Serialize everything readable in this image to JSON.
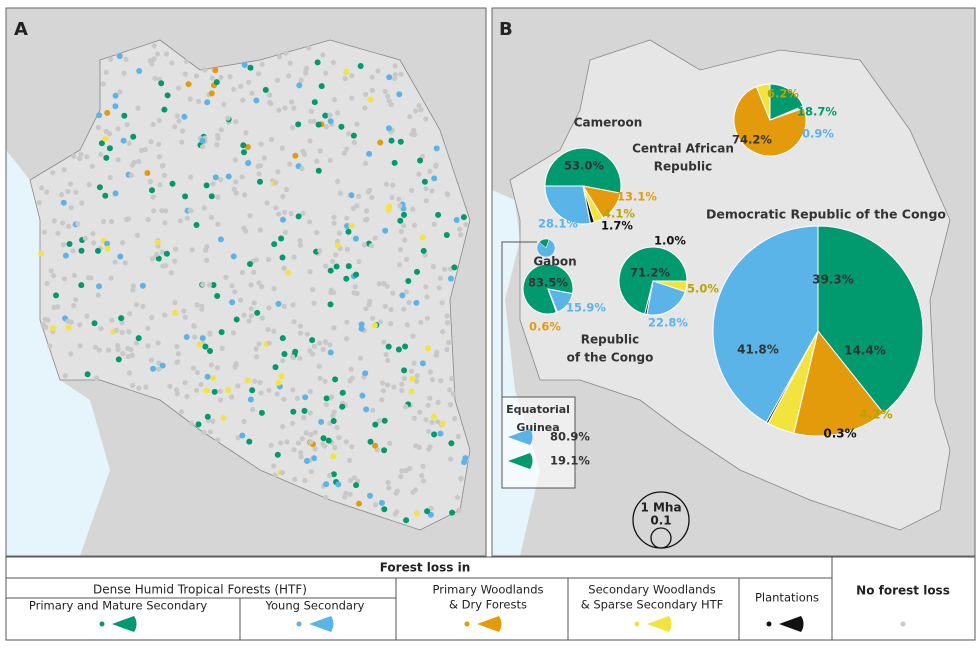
{
  "panels": {
    "a": {
      "label": "A"
    },
    "b": {
      "label": "B"
    }
  },
  "pies": [
    {
      "name": [
        "Central African",
        "Republic"
      ],
      "slices": [
        {
          "value": 18.7,
          "label": "18.7%",
          "color": "#009a6e"
        },
        {
          "value": 0.9,
          "label": "0.9%",
          "color": "#5ab4e8"
        },
        {
          "value": 74.2,
          "label": "74.2%",
          "color": "#e39b0c"
        },
        {
          "value": 6.2,
          "label": "6.2%",
          "color": "#f2e33f"
        }
      ]
    },
    {
      "name": [
        "Cameroon"
      ],
      "slices": [
        {
          "value": 53.0,
          "label": "53.0%",
          "color": "#009a6e"
        },
        {
          "value": 13.1,
          "label": "13.1%",
          "color": "#e39b0c"
        },
        {
          "value": 4.1,
          "label": "4.1%",
          "color": "#f2e33f"
        },
        {
          "value": 1.7,
          "label": "1.7%",
          "color": "#111111"
        },
        {
          "value": 28.1,
          "label": "28.1%",
          "color": "#5ab4e8"
        }
      ]
    },
    {
      "name": [
        "Gabon"
      ],
      "slices": [
        {
          "value": 83.5,
          "label": "83.5%",
          "color": "#009a6e"
        },
        {
          "value": 15.9,
          "label": "15.9%",
          "color": "#5ab4e8"
        },
        {
          "value": 0.6,
          "label": "0.6%",
          "color": "#e39b0c"
        }
      ]
    },
    {
      "name": [
        "Republic",
        "of the Congo"
      ],
      "slices": [
        {
          "value": 71.2,
          "label": "71.2%",
          "color": "#009a6e"
        },
        {
          "value": 5.0,
          "label": "5.0%",
          "color": "#f2e33f"
        },
        {
          "value": 22.8,
          "label": "22.8%",
          "color": "#5ab4e8"
        },
        {
          "value": 1.0,
          "label": "1.0%",
          "color": "#111111"
        }
      ]
    },
    {
      "name": [
        "Democratic Republic of the Congo"
      ],
      "slices": [
        {
          "value": 39.3,
          "label": "39.3%",
          "color": "#009a6e"
        },
        {
          "value": 14.4,
          "label": "14.4%",
          "color": "#e39b0c"
        },
        {
          "value": 4.2,
          "label": "4.2%",
          "color": "#f2e33f"
        },
        {
          "value": 0.3,
          "label": "0.3%",
          "color": "#111111"
        },
        {
          "value": 41.8,
          "label": "41.8%",
          "color": "#5ab4e8"
        }
      ]
    },
    {
      "name": [
        "Equatorial",
        "Guinea"
      ],
      "slices": [
        {
          "value": 80.9,
          "label": "80.9%",
          "color": "#5ab4e8"
        },
        {
          "value": 19.1,
          "label": "19.1%",
          "color": "#009a6e"
        }
      ]
    }
  ],
  "scale": {
    "large": "1 Mha",
    "small": "0.1"
  },
  "legend": {
    "title": "Forest loss in",
    "group": "Dense Humid Tropical Forests (HTF)",
    "items": [
      {
        "label": [
          "Primary and Mature Secondary"
        ],
        "color": "#009a6e"
      },
      {
        "label": [
          "Young Secondary"
        ],
        "color": "#5ab4e8"
      },
      {
        "label": [
          "Primary Woodlands",
          "& Dry Forests"
        ],
        "color": "#e39b0c"
      },
      {
        "label": [
          "Secondary Woodlands",
          "& Sparse Secondary HTF"
        ],
        "color": "#f2e33f"
      },
      {
        "label": [
          "Plantations"
        ],
        "color": "#111111"
      }
    ],
    "no_loss": "No forest loss",
    "no_loss_color": "#c8c8c8"
  }
}
